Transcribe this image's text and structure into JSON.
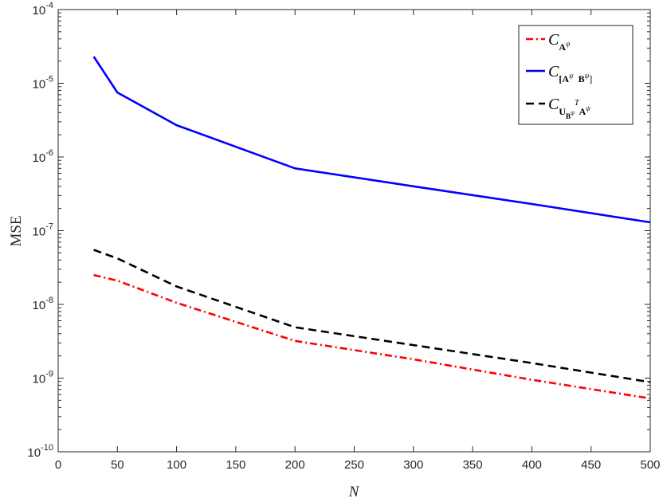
{
  "chart_data": {
    "type": "line",
    "xlabel": "N",
    "ylabel": "MSE",
    "xlim": [
      0,
      500
    ],
    "ylim": [
      1e-10,
      0.0001
    ],
    "yscale": "log",
    "xticks": [
      "0",
      "50",
      "100",
      "150",
      "200",
      "250",
      "300",
      "350",
      "400",
      "450",
      "500"
    ],
    "yticks": [
      {
        "base": "10",
        "exp": "-10"
      },
      {
        "base": "10",
        "exp": "-9"
      },
      {
        "base": "10",
        "exp": "-8"
      },
      {
        "base": "10",
        "exp": "-7"
      },
      {
        "base": "10",
        "exp": "-6"
      },
      {
        "base": "10",
        "exp": "-5"
      },
      {
        "base": "10",
        "exp": "-4"
      }
    ],
    "grid": false,
    "legend_position": "top-right",
    "x": [
      30,
      50,
      100,
      200,
      300,
      400,
      500
    ],
    "series": [
      {
        "name": "C_{A^ψ}",
        "legend": {
          "main": "C",
          "sub": "A",
          "sup": "ψ"
        },
        "color": "#ff0000",
        "style": "dashdot",
        "values": [
          2.5e-08,
          2.1e-08,
          1.05e-08,
          3.2e-09,
          1.8e-09,
          9.5e-10,
          5.3e-10
        ]
      },
      {
        "name": "C_{[A^ψ B^ψ]}",
        "legend": {
          "main": "C",
          "sub": "[A",
          "sup": "ψ",
          "sub2": "B",
          "sup2": "ψ",
          "tail": "]"
        },
        "color": "#0000ff",
        "style": "solid",
        "values": [
          2.3e-05,
          7.5e-06,
          2.7e-06,
          7e-07,
          4e-07,
          2.3e-07,
          1.3e-07
        ]
      },
      {
        "name": "C_{U_{B^ψ}^T A^ψ}",
        "legend": {
          "main": "C",
          "sub": "U",
          "subsub": "B",
          "subsubsup": "ψ",
          "sup": "T",
          "sub2": "A",
          "sup2": "ψ"
        },
        "color": "#000000",
        "style": "dashed",
        "values": [
          5.5e-08,
          4.2e-08,
          1.75e-08,
          4.9e-09,
          2.8e-09,
          1.6e-09,
          8.8e-10
        ]
      }
    ]
  }
}
